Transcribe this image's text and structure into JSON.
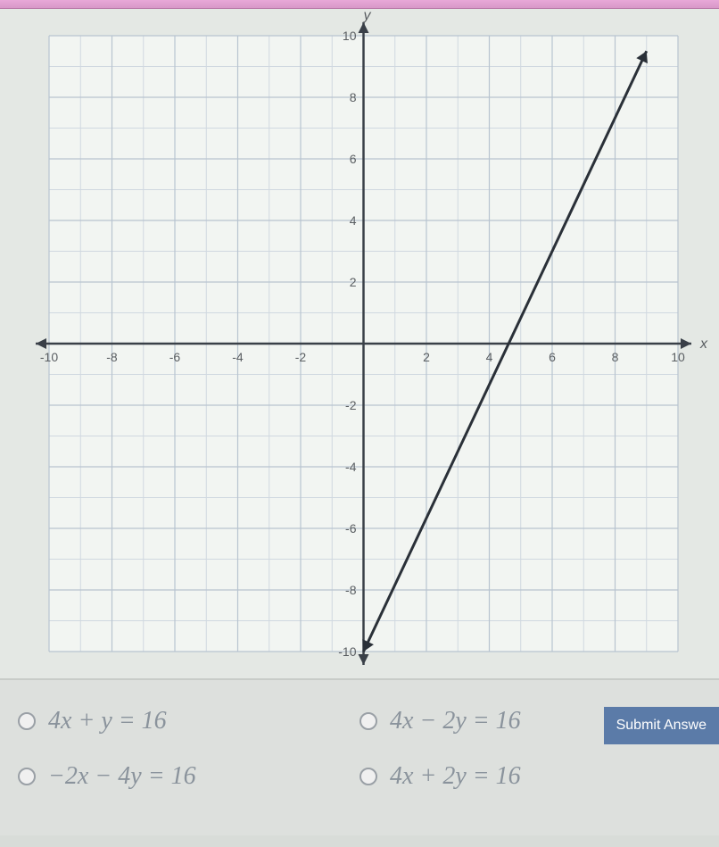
{
  "chart": {
    "type": "line",
    "xlim": [
      -10,
      10
    ],
    "ylim": [
      -10,
      10
    ],
    "xtick_step": 2,
    "ytick_step": 2,
    "xticks": [
      -10,
      -8,
      -6,
      -4,
      -2,
      2,
      4,
      6,
      8,
      10
    ],
    "yticks": [
      -10,
      -8,
      -6,
      -4,
      -2,
      2,
      4,
      6,
      8,
      10
    ],
    "xlabel": "x",
    "ylabel": "y",
    "label_fontsize": 16,
    "tick_fontsize": 14,
    "background_color": "#e4e8e4",
    "plot_bg_color": "#f2f5f2",
    "grid_major_color": "#b8c4d0",
    "grid_minor_color": "#d0d8e0",
    "axis_color": "#3a4048",
    "line_color": "#2a3038",
    "line_width": 3,
    "points": [
      [
        0,
        -10
      ],
      [
        9,
        9.5
      ]
    ],
    "minor_grid_step": 1
  },
  "answers": {
    "opt_a": "4x + y = 16",
    "opt_b": "4x − 2y = 16",
    "opt_c": "−2x − 4y = 16",
    "opt_d": "4x + 2y = 16"
  },
  "submit_label": "Submit Answe"
}
